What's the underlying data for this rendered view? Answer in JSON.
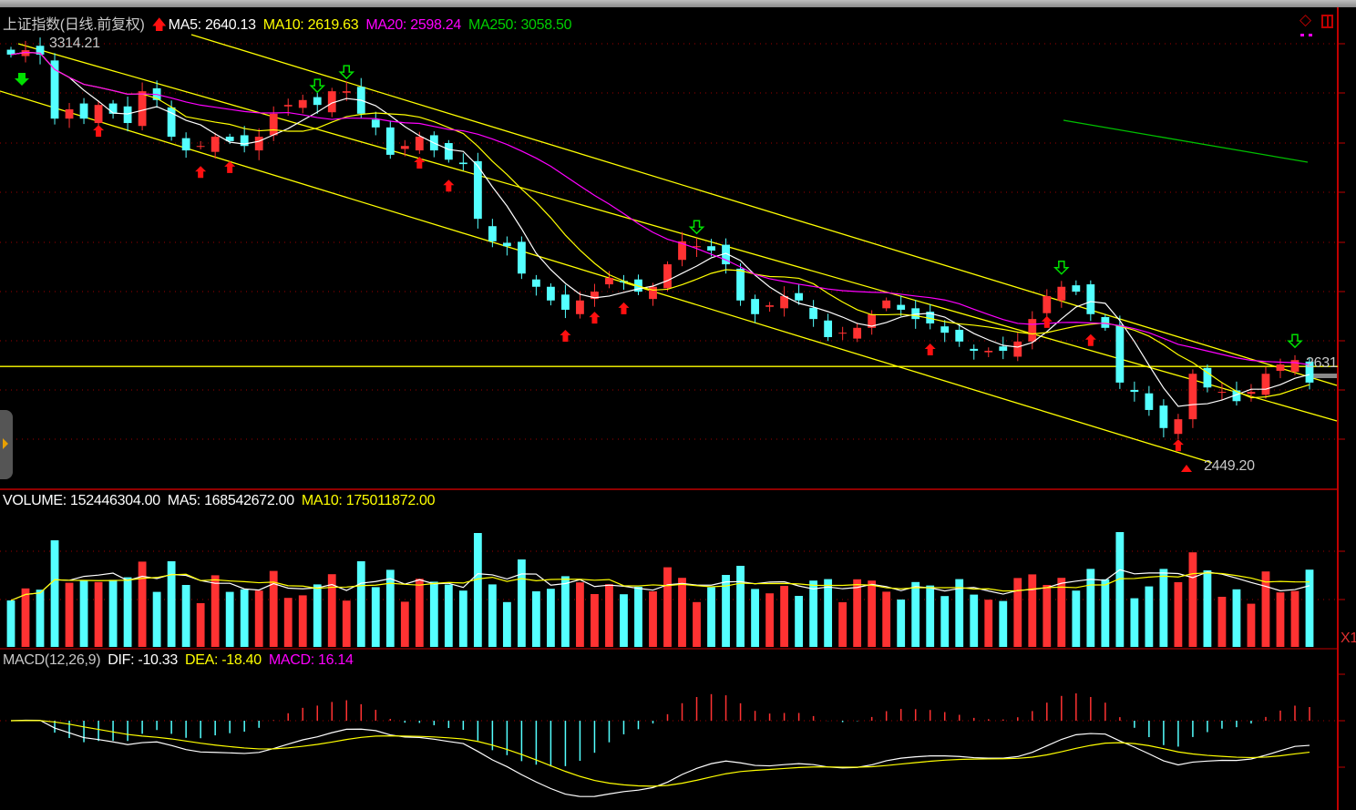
{
  "header": {
    "title": "上证指数(日线.前复权)",
    "ma5": "MA5: 2640.13",
    "ma10": "MA10: 2619.63",
    "ma20": "MA20: 2598.24",
    "ma250": "MA250: 3058.50"
  },
  "volume_legend": {
    "volume": "VOLUME: 152446304.00",
    "ma5": "MA5: 168542672.00",
    "ma10": "MA10: 175011872.00"
  },
  "macd_legend": {
    "name": "MACD(12,26,9)",
    "dif": "DIF: -10.33",
    "dea": "DEA: -18.40",
    "macd": "MACD: 16.14"
  },
  "annotations": {
    "high": "3314.21",
    "low": "2449.20",
    "last": "2631",
    "volume_axis": "X1"
  },
  "colors": {
    "up": "#ff3232",
    "down": "#54ffff",
    "ma5": "#ffffff",
    "ma10": "#ffff00",
    "ma20": "#ff00ff",
    "ma250": "#00c000",
    "channel": "#ffff00",
    "axis": "#c00000"
  },
  "chart_data": {
    "type": "candlestick",
    "title": "上证指数(日线.前复权)",
    "ylim": [
      2420,
      3330
    ],
    "grid": true,
    "closes": [
      3292,
      3301,
      3292,
      3161,
      3180,
      3161,
      3189,
      3171,
      3152,
      3217,
      3199,
      3124,
      3096,
      3105,
      3124,
      3115,
      3105,
      3124,
      3171,
      3189,
      3199,
      3189,
      3217,
      3217,
      3171,
      3143,
      3087,
      3105,
      3124,
      3096,
      3077,
      3068,
      2956,
      2910,
      2900,
      2844,
      2817,
      2789,
      2770,
      2789,
      2807,
      2835,
      2826,
      2807,
      2817,
      2863,
      2910,
      2900,
      2891,
      2863,
      2789,
      2761,
      2779,
      2798,
      2789,
      2751,
      2714,
      2723,
      2733,
      2761,
      2789,
      2770,
      2751,
      2742,
      2723,
      2705,
      2686,
      2686,
      2686,
      2705,
      2751,
      2798,
      2817,
      2807,
      2761,
      2733,
      2621,
      2602,
      2565,
      2528,
      2546,
      2639,
      2611,
      2602,
      2583,
      2602,
      2639,
      2658,
      2667,
      2621
    ],
    "high_label": 3314.21,
    "low_label": 2449.2,
    "support_level": 2654
  }
}
